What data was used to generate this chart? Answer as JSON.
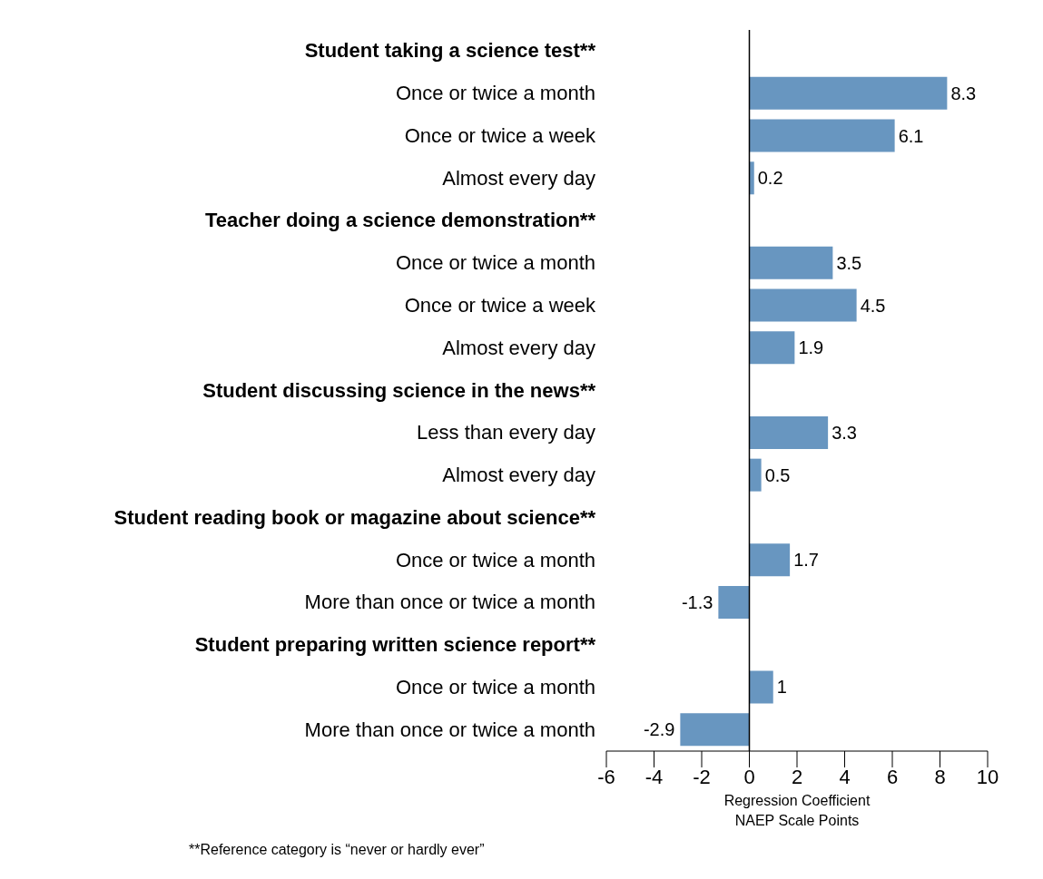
{
  "chart_data": {
    "type": "bar",
    "orientation": "horizontal",
    "categories": [
      "Student taking a science test**",
      "Once or twice a month",
      "Once or twice a week",
      "Almost every day",
      "Teacher doing a science demonstration**",
      "Once or twice a month",
      "Once or twice a week",
      "Almost every day",
      "Student discussing science in the news**",
      "Less than every day",
      "Almost every day",
      "Student reading book or magazine about science**",
      "Once or twice a month",
      "More than once or twice a month",
      "Student preparing written science report**",
      "Once or twice a month",
      "More than once or twice a month"
    ],
    "values": [
      null,
      8.3,
      6.1,
      0.2,
      null,
      3.5,
      4.5,
      1.9,
      null,
      3.3,
      0.5,
      null,
      1.7,
      -1.3,
      null,
      1,
      -2.9
    ],
    "color": "#6896c0",
    "data_labels": true,
    "xlim": [
      -6,
      10
    ],
    "xticks": [
      -6,
      -4,
      -2,
      0,
      2,
      4,
      6,
      8,
      10
    ],
    "xlabel": "Regression Coefficient\nNAEP Scale Points",
    "ref_lines": [
      {
        "axis": "x",
        "value": 0
      }
    ],
    "grid": false,
    "legend": false,
    "annotations": [
      "**Reference category is “never or hardly ever”"
    ]
  }
}
